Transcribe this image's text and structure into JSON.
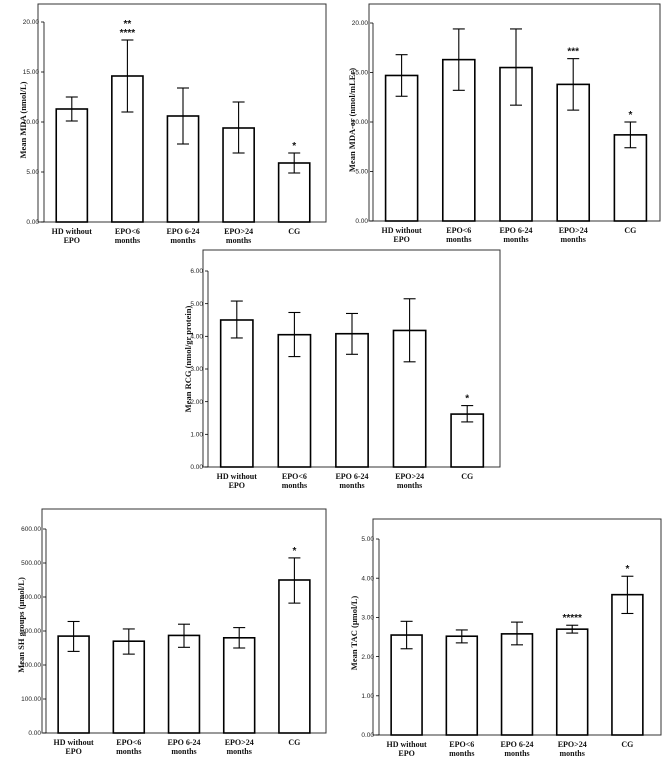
{
  "chart_data": [
    {
      "id": "mda",
      "type": "bar",
      "ylabel": "Mean MDA (nmol/L)",
      "categories": [
        [
          "HD without",
          "EPO"
        ],
        [
          "EPO<6",
          "months"
        ],
        [
          "EPO 6-24",
          "months"
        ],
        [
          "EPO>24",
          "months"
        ],
        [
          "CG"
        ]
      ],
      "values": [
        11.3,
        14.6,
        10.6,
        9.4,
        5.9
      ],
      "error_low": [
        10.1,
        11.0,
        7.8,
        6.9,
        4.9
      ],
      "error_high": [
        12.5,
        18.2,
        13.4,
        12.0,
        6.9
      ],
      "significance": [
        [],
        [
          "**",
          "****"
        ],
        [],
        [],
        [
          "*"
        ]
      ],
      "ylim": [
        0,
        20
      ],
      "yticks": [
        0,
        5,
        10,
        15,
        20
      ],
      "ytick_labels": [
        "0.00",
        "5.00",
        "10.00",
        "15.00",
        "20.00"
      ]
    },
    {
      "id": "mda-er",
      "type": "bar",
      "ylabel": "Mean MDA-er (nmol/mLEr)",
      "categories": [
        [
          "HD without",
          "EPO"
        ],
        [
          "EPO<6",
          "months"
        ],
        [
          "EPO 6-24",
          "months"
        ],
        [
          "EPO>24",
          "months"
        ],
        [
          "CG"
        ]
      ],
      "values": [
        14.7,
        16.3,
        15.5,
        13.8,
        8.7
      ],
      "error_low": [
        12.6,
        13.2,
        11.7,
        11.2,
        7.4
      ],
      "error_high": [
        16.8,
        19.4,
        19.4,
        16.4,
        10.0
      ],
      "significance": [
        [],
        [],
        [],
        [
          "***"
        ],
        [
          "*"
        ]
      ],
      "ylim": [
        0,
        20
      ],
      "yticks": [
        0,
        5,
        10,
        15,
        20
      ],
      "ytick_labels": [
        "0.00",
        "5.00",
        "10.00",
        "15.00",
        "20.00"
      ]
    },
    {
      "id": "rcg",
      "type": "bar",
      "ylabel": "Mean RCG (nmol/gr protein)",
      "categories": [
        [
          "HD without",
          "EPO"
        ],
        [
          "EPO<6",
          "months"
        ],
        [
          "EPO 6-24",
          "months"
        ],
        [
          "EPO>24",
          "months"
        ],
        [
          "CG"
        ]
      ],
      "values": [
        4.5,
        4.05,
        4.08,
        4.18,
        1.62
      ],
      "error_low": [
        3.95,
        3.38,
        3.45,
        3.22,
        1.38
      ],
      "error_high": [
        5.08,
        4.73,
        4.7,
        5.15,
        1.88
      ],
      "significance": [
        [],
        [],
        [],
        [],
        [
          "*"
        ]
      ],
      "ylim": [
        0,
        6
      ],
      "yticks": [
        0,
        1,
        2,
        3,
        4,
        5,
        6
      ],
      "ytick_labels": [
        "0.00",
        "1.00",
        "2.00",
        "3.00",
        "4.00",
        "5.00",
        "6.00"
      ]
    },
    {
      "id": "sh",
      "type": "bar",
      "ylabel": "Mean SH groups (μmol/L)",
      "categories": [
        [
          "HD without",
          "EPO"
        ],
        [
          "EPO<6",
          "months"
        ],
        [
          "EPO 6-24",
          "months"
        ],
        [
          "EPO>24",
          "months"
        ],
        [
          "CG"
        ]
      ],
      "values": [
        285,
        270,
        287,
        280,
        450
      ],
      "error_low": [
        240,
        232,
        252,
        250,
        382
      ],
      "error_high": [
        328,
        306,
        320,
        310,
        515
      ],
      "significance": [
        [],
        [],
        [],
        [],
        [
          "*"
        ]
      ],
      "ylim": [
        0,
        600
      ],
      "yticks": [
        0,
        100,
        200,
        300,
        400,
        500,
        600
      ],
      "ytick_labels": [
        "0.00",
        "100.00",
        "200.00",
        "300.00",
        "400.00",
        "500.00",
        "600.00"
      ]
    },
    {
      "id": "tac",
      "type": "bar",
      "ylabel": "Mean TAC (μmol/L)",
      "categories": [
        [
          "HD without",
          "EPO"
        ],
        [
          "EPO<6",
          "months"
        ],
        [
          "EPO 6-24",
          "months"
        ],
        [
          "EPO>24",
          "months"
        ],
        [
          "CG"
        ]
      ],
      "values": [
        2.55,
        2.52,
        2.58,
        2.7,
        3.58
      ],
      "error_low": [
        2.2,
        2.35,
        2.3,
        2.6,
        3.1
      ],
      "error_high": [
        2.9,
        2.68,
        2.88,
        2.8,
        4.05
      ],
      "significance": [
        [],
        [],
        [],
        [
          "*****"
        ],
        [
          "*"
        ]
      ],
      "ylim": [
        0,
        5
      ],
      "yticks": [
        0,
        1,
        2,
        3,
        4,
        5
      ],
      "ytick_labels": [
        "0.00",
        "1.00",
        "2.00",
        "3.00",
        "4.00",
        "5.00"
      ]
    }
  ]
}
